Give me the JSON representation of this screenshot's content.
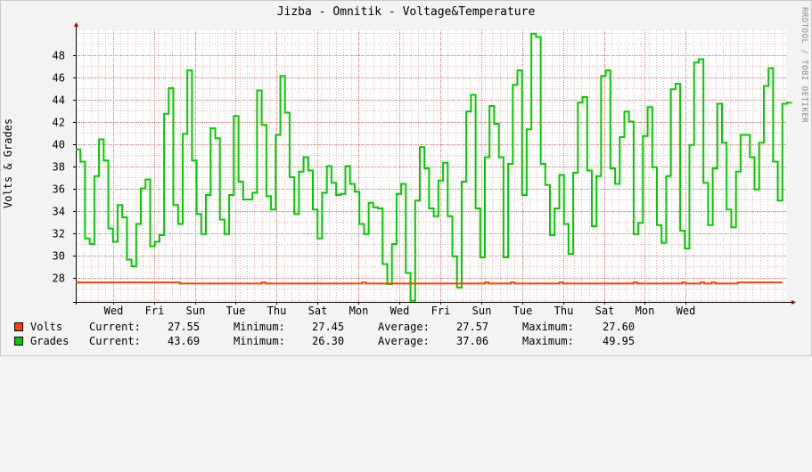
{
  "chart_data": {
    "type": "line",
    "title": "Jizba - Omnitik - Voltage&Temperature",
    "ylabel": "Volts & Grades",
    "watermark": "RRDTOOL / TOBI OETIKER",
    "ylim": [
      25.8,
      50.2
    ],
    "yticks": [
      28,
      30,
      32,
      34,
      36,
      38,
      40,
      42,
      44,
      46,
      48
    ],
    "xlim": [
      0,
      191
    ],
    "xticks": [
      {
        "x": 10,
        "label": "Wed"
      },
      {
        "x": 21,
        "label": "Fri"
      },
      {
        "x": 32,
        "label": "Sun"
      },
      {
        "x": 43,
        "label": "Tue"
      },
      {
        "x": 54,
        "label": "Thu"
      },
      {
        "x": 65,
        "label": "Sat"
      },
      {
        "x": 76,
        "label": "Mon"
      },
      {
        "x": 87,
        "label": "Wed"
      },
      {
        "x": 98,
        "label": "Fri"
      },
      {
        "x": 109,
        "label": "Sun"
      },
      {
        "x": 120,
        "label": "Tue"
      },
      {
        "x": 131,
        "label": "Thu"
      },
      {
        "x": 142,
        "label": "Sat"
      },
      {
        "x": 153,
        "label": "Mon"
      },
      {
        "x": 164,
        "label": "Wed"
      }
    ],
    "series": [
      {
        "name": "Volts",
        "color": "#ff4000",
        "x": [
          0,
          27,
          28,
          50,
          51,
          77,
          78,
          110,
          111,
          117,
          118,
          130,
          131,
          150,
          151,
          163,
          164,
          168,
          169,
          171,
          172,
          178
        ],
        "values": [
          27.55,
          27.55,
          27.45,
          27.55,
          27.45,
          27.55,
          27.45,
          27.55,
          27.45,
          27.55,
          27.45,
          27.55,
          27.45,
          27.55,
          27.45,
          27.55,
          27.45,
          27.55,
          27.45,
          27.55,
          27.45,
          27.55
        ],
        "stats": {
          "current": "27.55",
          "minimum": "27.45",
          "average": "27.57",
          "maximum": "27.60"
        }
      },
      {
        "name": "Grades",
        "color": "#00cc00",
        "values": [
          39.5,
          38.4,
          31.5,
          31.0,
          37.1,
          40.4,
          38.5,
          32.4,
          31.2,
          34.5,
          33.4,
          29.6,
          29.0,
          32.8,
          36.0,
          36.8,
          30.8,
          31.2,
          31.8,
          42.7,
          45.0,
          34.5,
          32.8,
          40.9,
          46.6,
          38.5,
          33.7,
          31.9,
          35.4,
          41.4,
          40.5,
          33.2,
          31.9,
          35.4,
          42.5,
          36.6,
          35.0,
          35.0,
          35.6,
          44.8,
          41.7,
          35.3,
          34.1,
          40.8,
          46.1,
          42.8,
          37.0,
          33.7,
          37.5,
          38.8,
          37.6,
          34.1,
          31.5,
          35.6,
          38.0,
          36.5,
          35.4,
          35.5,
          38.0,
          36.4,
          35.7,
          32.8,
          31.9,
          34.7,
          34.3,
          34.2,
          29.2,
          27.4,
          31.0,
          35.5,
          36.4,
          28.4,
          25.9,
          34.9,
          39.7,
          37.8,
          34.2,
          33.5,
          36.7,
          38.3,
          33.5,
          29.9,
          27.1,
          36.6,
          42.9,
          44.4,
          34.2,
          29.8,
          38.8,
          43.4,
          41.8,
          38.8,
          29.8,
          38.2,
          45.3,
          46.6,
          35.4,
          41.3,
          49.9,
          49.6,
          38.2,
          36.3,
          31.8,
          34.2,
          37.2,
          32.8,
          30.1,
          37.4,
          43.7,
          44.2,
          37.6,
          32.6,
          37.1,
          46.1,
          46.6,
          37.8,
          36.4,
          40.6,
          42.9,
          42.0,
          31.9,
          32.9,
          40.7,
          43.3,
          37.9,
          32.7,
          31.1,
          37.1,
          44.9,
          45.4,
          32.2,
          30.6,
          39.9,
          47.3,
          47.6,
          36.5,
          32.7,
          37.8,
          43.6,
          40.1,
          34.1,
          32.5,
          37.5,
          40.8,
          40.8,
          38.8,
          35.9,
          40.1,
          45.2,
          46.8,
          38.4,
          34.9,
          43.6,
          43.7
        ]
      }
    ],
    "legend": [
      {
        "name": "Volts",
        "current_label": "Current:",
        "current": "27.55",
        "minimum_label": "Minimum:",
        "minimum": "27.45",
        "average_label": "Average:",
        "average": "27.57",
        "maximum_label": "Maximum:",
        "maximum": "27.60",
        "color": "#ff4000"
      },
      {
        "name": "Grades",
        "current_label": "Current:",
        "current": "43.69",
        "minimum_label": "Minimum:",
        "minimum": "26.30",
        "average_label": "Average:",
        "average": "37.06",
        "maximum_label": "Maximum:",
        "maximum": "49.95",
        "color": "#00cc00"
      }
    ],
    "colors": {
      "background": "#f3f3f3",
      "canvas": "#ffffff",
      "grid_minor": "#f0b0b0",
      "grid_major": "#e08080"
    }
  }
}
